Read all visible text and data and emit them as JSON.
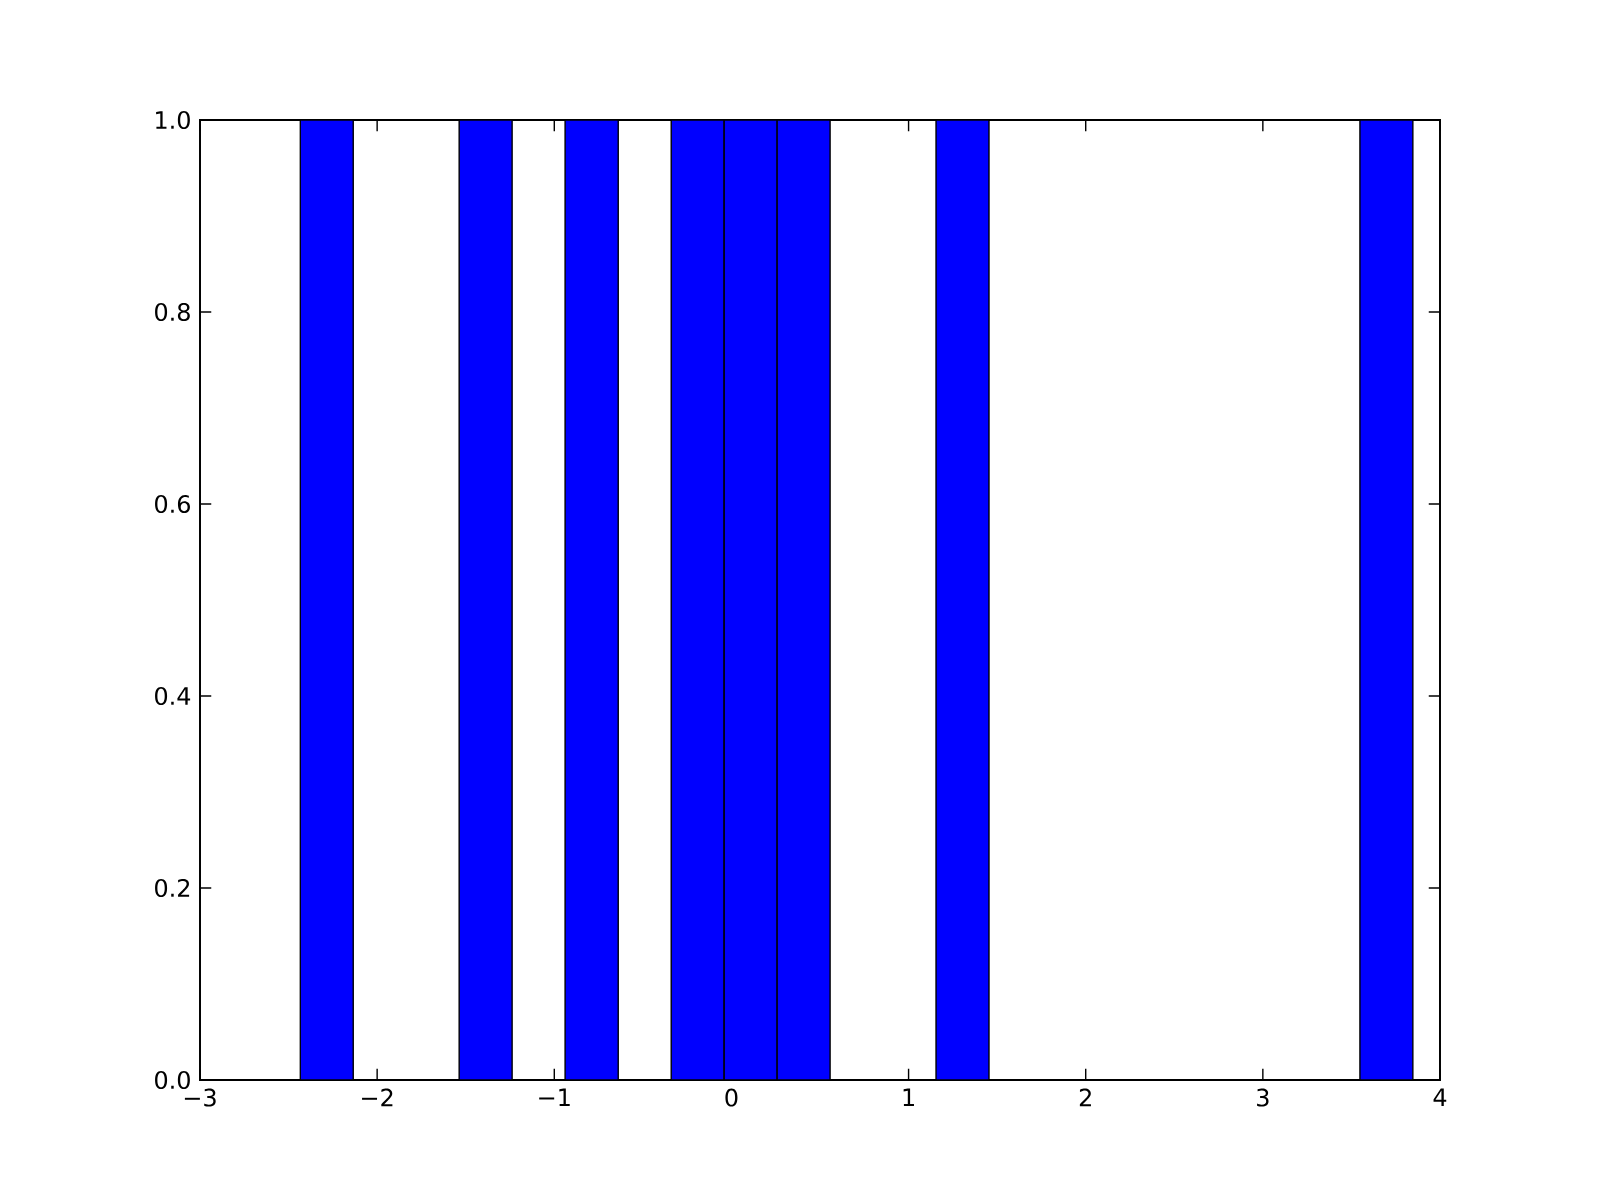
{
  "chart_data": {
    "type": "histogram",
    "bins": [
      -2.434,
      -2.135,
      -1.836,
      -1.537,
      -1.238,
      -0.939,
      -0.639,
      -0.34,
      -0.041,
      0.258,
      0.557,
      0.856,
      1.155,
      1.454,
      1.753,
      2.053,
      2.352,
      2.651,
      2.95,
      3.249,
      3.548,
      3.847
    ],
    "values": [
      1,
      0,
      0,
      1,
      0,
      1,
      0,
      1,
      1,
      1,
      0,
      0,
      1,
      0,
      0,
      0,
      0,
      0,
      0,
      0,
      1
    ],
    "color": "#0000ff",
    "xlim": [
      -3,
      4
    ],
    "xticks": [
      {
        "value": -3,
        "label": "−3"
      },
      {
        "value": -2,
        "label": "−2"
      },
      {
        "value": -1,
        "label": "−1"
      },
      0,
      1,
      2,
      3,
      4
    ],
    "ylim": [
      0,
      1
    ],
    "yticks": [
      {
        "value": 0,
        "label": "0.0"
      },
      {
        "value": 0.2,
        "label": "0.2"
      },
      {
        "value": 0.4,
        "label": "0.4"
      },
      {
        "value": 0.6,
        "label": "0.6"
      },
      {
        "value": 0.8,
        "label": "0.8"
      },
      {
        "value": 1,
        "label": "1.0"
      }
    ],
    "grid": false
  }
}
